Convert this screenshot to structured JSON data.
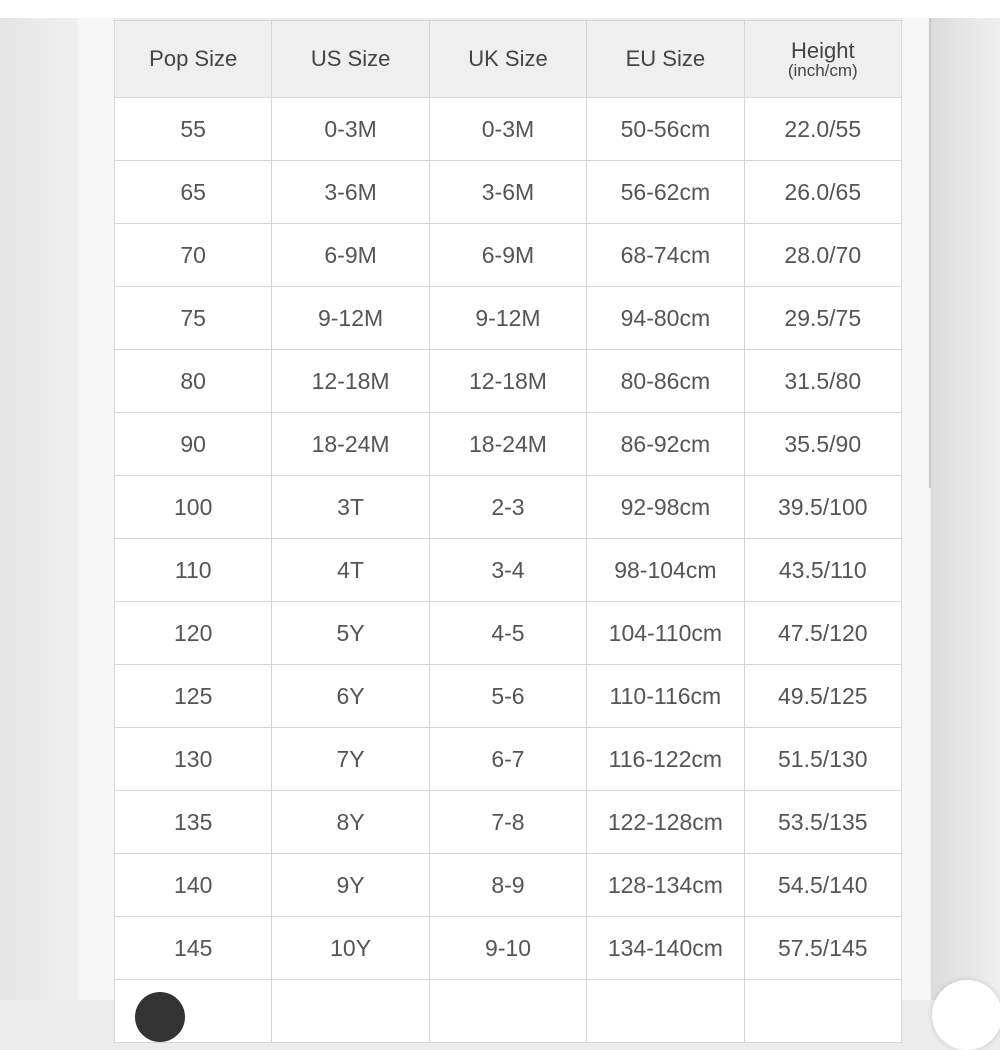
{
  "table": {
    "headers": [
      "Pop Size",
      "US Size",
      "UK Size",
      "EU Size",
      "Height"
    ],
    "height_unit": "(inch/cm)",
    "rows": [
      [
        "55",
        "0-3M",
        "0-3M",
        "50-56cm",
        "22.0/55"
      ],
      [
        "65",
        "3-6M",
        "3-6M",
        "56-62cm",
        "26.0/65"
      ],
      [
        "70",
        "6-9M",
        "6-9M",
        "68-74cm",
        "28.0/70"
      ],
      [
        "75",
        "9-12M",
        "9-12M",
        "94-80cm",
        "29.5/75"
      ],
      [
        "80",
        "12-18M",
        "12-18M",
        "80-86cm",
        "31.5/80"
      ],
      [
        "90",
        "18-24M",
        "18-24M",
        "86-92cm",
        "35.5/90"
      ],
      [
        "100",
        "3T",
        "2-3",
        "92-98cm",
        "39.5/100"
      ],
      [
        "110",
        "4T",
        "3-4",
        "98-104cm",
        "43.5/110"
      ],
      [
        "120",
        "5Y",
        "4-5",
        "104-110cm",
        "47.5/120"
      ],
      [
        "125",
        "6Y",
        "5-6",
        "110-116cm",
        "49.5/125"
      ],
      [
        "130",
        "7Y",
        "6-7",
        "116-122cm",
        "51.5/130"
      ],
      [
        "135",
        "8Y",
        "7-8",
        "122-128cm",
        "53.5/135"
      ],
      [
        "140",
        "9Y",
        "8-9",
        "128-134cm",
        "54.5/140"
      ],
      [
        "145",
        "10Y",
        "9-10",
        "134-140cm",
        "57.5/145"
      ],
      [
        "",
        "",
        "",
        "",
        ""
      ]
    ]
  }
}
